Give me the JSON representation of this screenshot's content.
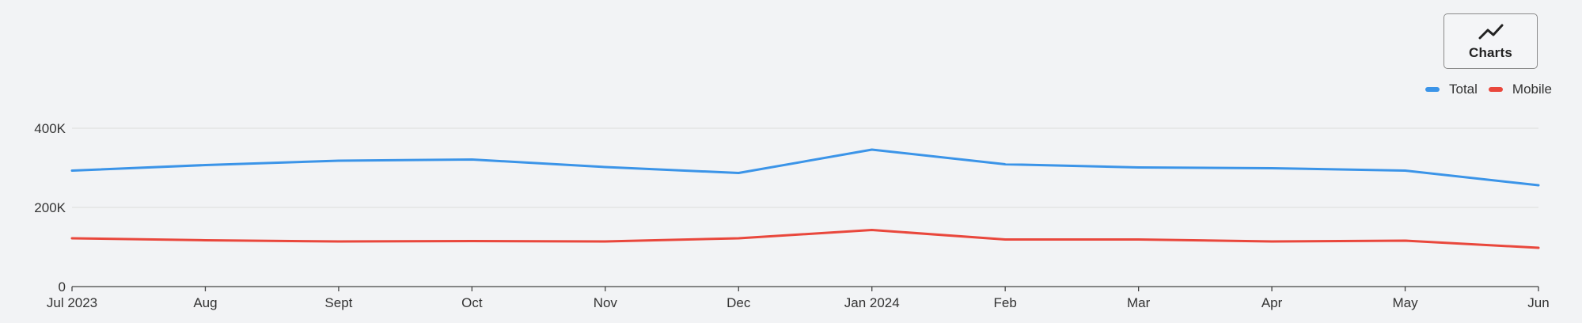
{
  "toolbar": {
    "charts_label": "Charts",
    "charts_icon": "line-chart-icon"
  },
  "chart_data": {
    "type": "line",
    "categories": [
      "Jul 2023",
      "Aug",
      "Sept",
      "Oct",
      "Nov",
      "Dec",
      "Jan 2024",
      "Feb",
      "Mar",
      "Apr",
      "May",
      "Jun"
    ],
    "series": [
      {
        "name": "Total",
        "color": "#3b94e8",
        "values": [
          293000,
          307000,
          318000,
          321000,
          302000,
          287000,
          346000,
          309000,
          301000,
          299000,
          293000,
          256000
        ]
      },
      {
        "name": "Mobile",
        "color": "#e9473c",
        "values": [
          122000,
          117000,
          114000,
          115000,
          114000,
          122000,
          143000,
          119000,
          119000,
          114000,
          116000,
          98000
        ]
      }
    ],
    "y_ticks": [
      {
        "value": 0,
        "label": "0"
      },
      {
        "value": 200000,
        "label": "200K"
      },
      {
        "value": 400000,
        "label": "400K"
      }
    ],
    "ylim": [
      0,
      400000
    ],
    "grid": true,
    "legend_position": "top-right"
  }
}
